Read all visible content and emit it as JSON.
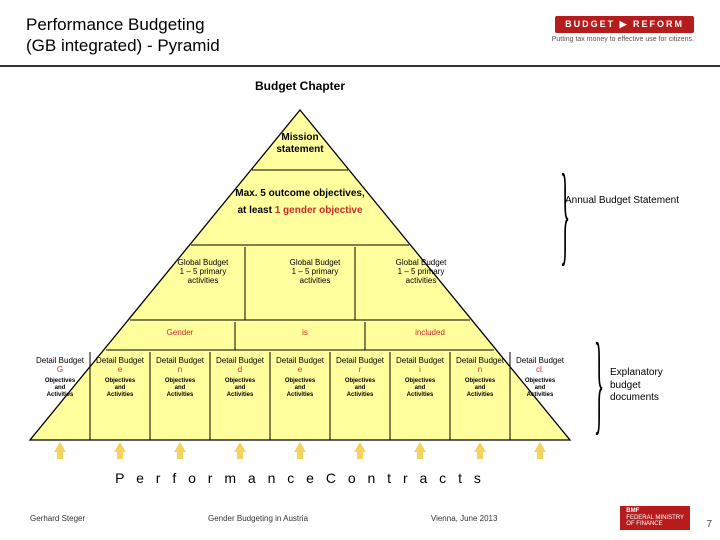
{
  "header": {
    "title_line1": "Performance Budgeting",
    "title_line2": "(GB integrated) - Pyramid",
    "logo_text": "BUDGET  ▶  REFORM",
    "tagline": "Putting tax money to effective use for citizens."
  },
  "pyramid": {
    "top_label": "Budget Chapter",
    "level1": "Mission statement",
    "level2_a": "Max. 5 outcome objectives,",
    "level2_b": "at least ",
    "level2_c": "1 gender objective",
    "level3_cells": [
      {
        "l1": "Global Budget",
        "l2": "1 – 5 primary",
        "l3": "activities"
      },
      {
        "l1": "Global Budget",
        "l2": "1 – 5 primary",
        "l3": "activities"
      },
      {
        "l1": "Global Budget",
        "l2": "1 – 5 primary",
        "l3": "activities"
      }
    ],
    "level4_words": [
      "Gender",
      "is",
      "included"
    ],
    "level5_cells": [
      {
        "t": "Detail Budget",
        "s": "G",
        "b": "Objectives and Activities"
      },
      {
        "t": "Detail Budget",
        "s": "e",
        "b": "Objectives and Activities"
      },
      {
        "t": "Detail Budget",
        "s": "n",
        "b": "Objectives and Activities"
      },
      {
        "t": "Detail Budget",
        "s": "d",
        "b": "Objectives and Activities"
      },
      {
        "t": "Detail Budget",
        "s": "e",
        "b": "Objectives and Activities"
      },
      {
        "t": "Detail Budget",
        "s": "r",
        "b": "Objectives and Activities"
      },
      {
        "t": "Detail Budget",
        "s": "i",
        "b": "Objectives and Activities"
      },
      {
        "t": "Detail Budget",
        "s": "n",
        "b": "Objectives and Activities"
      },
      {
        "t": "Detail Budget",
        "s": "cl.",
        "b": "Objectives and Activities"
      }
    ],
    "colors": {
      "fill": "#ffff9e",
      "stroke": "#000000",
      "gender_red": "#cc2a2a"
    },
    "perf_contracts": "P e r f o r m a n c e   C o n t r a c t s"
  },
  "callouts": {
    "annual": "Annual Budget Statement",
    "explanatory_l1": "Explanatory",
    "explanatory_l2": "budget",
    "explanatory_l3": "documents"
  },
  "footer": {
    "author": "Gerhard Steger",
    "center": "Gender Budgeting in Austria",
    "venue": "Vienna, June 2013",
    "ministry_l1": "BMF",
    "ministry_l2": "FEDERAL MINISTRY",
    "ministry_l3": "OF FINANCE",
    "page": "7"
  }
}
